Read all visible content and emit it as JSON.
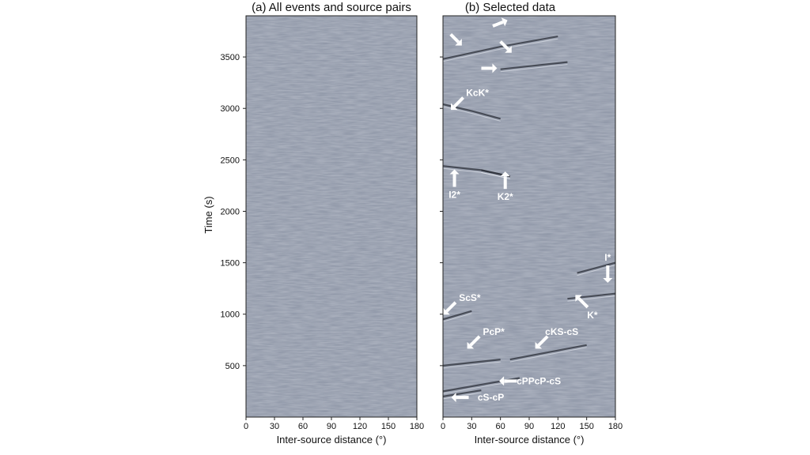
{
  "figure": {
    "panel_a_title": "(a) All events and source pairs",
    "panel_b_title": "(b) Selected data",
    "y_label": "Time (s)",
    "x_label": "Inter-source distance (°)",
    "y_ticks": [
      "500",
      "1000",
      "1500",
      "2000",
      "2500",
      "3000",
      "3500"
    ],
    "x_ticks": [
      "0",
      "30",
      "60",
      "90",
      "120",
      "150",
      "180"
    ],
    "background_color": "#8b93a4",
    "arrow_color": "#ffffff"
  },
  "annotations": [
    {
      "label": "KcK*",
      "x": 36,
      "t": 3120
    },
    {
      "label": "I2*",
      "x": 12,
      "t": 2130
    },
    {
      "label": "K2*",
      "x": 65,
      "t": 2110
    },
    {
      "label": "I*",
      "x": 172,
      "t": 1520
    },
    {
      "label": "ScS*",
      "x": 28,
      "t": 1130
    },
    {
      "label": "K*",
      "x": 156,
      "t": 960
    },
    {
      "label": "PcP*",
      "x": 53,
      "t": 800
    },
    {
      "label": "cKS-cS",
      "x": 124,
      "t": 800
    },
    {
      "label": "cPPcP-cS",
      "x": 100,
      "t": 320
    },
    {
      "label": "cS-cP",
      "x": 50,
      "t": 160
    }
  ],
  "chart_data": [
    {
      "type": "heatmap",
      "title": "(a) All events and source pairs",
      "xlabel": "Inter-source distance (°)",
      "ylabel": "Time (s)",
      "xlim": [
        0,
        180
      ],
      "ylim": [
        0,
        3900
      ],
      "x_ticks": [
        0,
        30,
        60,
        90,
        120,
        150,
        180
      ],
      "y_ticks": [
        500,
        1000,
        1500,
        2000,
        2500,
        3000,
        3500
      ],
      "colormap": "gray (seismic wiggle)",
      "grid": false
    },
    {
      "type": "heatmap",
      "title": "(b) Selected data",
      "xlabel": "Inter-source distance (°)",
      "xlim": [
        0,
        180
      ],
      "ylim": [
        0,
        3900
      ],
      "x_ticks": [
        0,
        30,
        60,
        90,
        120,
        150,
        180
      ],
      "y_ticks": [
        500,
        1000,
        1500,
        2000,
        2500,
        3000,
        3500
      ],
      "colormap": "gray (seismic wiggle)",
      "grid": false,
      "phases": [
        {
          "name": "KcK*",
          "points": [
            [
              0,
              3040
            ],
            [
              30,
              2975
            ],
            [
              60,
              2900
            ]
          ]
        },
        {
          "name": "I2*",
          "points": [
            [
              0,
              2440
            ],
            [
              40,
              2400
            ],
            [
              70,
              2340
            ]
          ]
        },
        {
          "name": "K2*",
          "points": [
            [
              40,
              2400
            ],
            [
              70,
              2340
            ]
          ]
        },
        {
          "name": "I*",
          "points": [
            [
              140,
              1400
            ],
            [
              180,
              1500
            ]
          ]
        },
        {
          "name": "ScS*",
          "points": [
            [
              0,
              950
            ],
            [
              30,
              1030
            ]
          ]
        },
        {
          "name": "K*",
          "points": [
            [
              130,
              1150
            ],
            [
              180,
              1200
            ]
          ]
        },
        {
          "name": "PcP*",
          "points": [
            [
              0,
              500
            ],
            [
              60,
              560
            ]
          ]
        },
        {
          "name": "cKS-cS",
          "points": [
            [
              70,
              560
            ],
            [
              150,
              700
            ]
          ]
        },
        {
          "name": "cPPcP-cS",
          "points": [
            [
              0,
              250
            ],
            [
              80,
              380
            ]
          ]
        },
        {
          "name": "cS-cP",
          "points": [
            [
              0,
              200
            ],
            [
              40,
              260
            ]
          ]
        },
        {
          "name": "unlabelled",
          "points": [
            [
              0,
              3480
            ],
            [
              60,
              3600
            ],
            [
              120,
              3700
            ]
          ]
        },
        {
          "name": "unlabelled",
          "points": [
            [
              60,
              3380
            ],
            [
              130,
              3450
            ]
          ]
        }
      ]
    }
  ]
}
